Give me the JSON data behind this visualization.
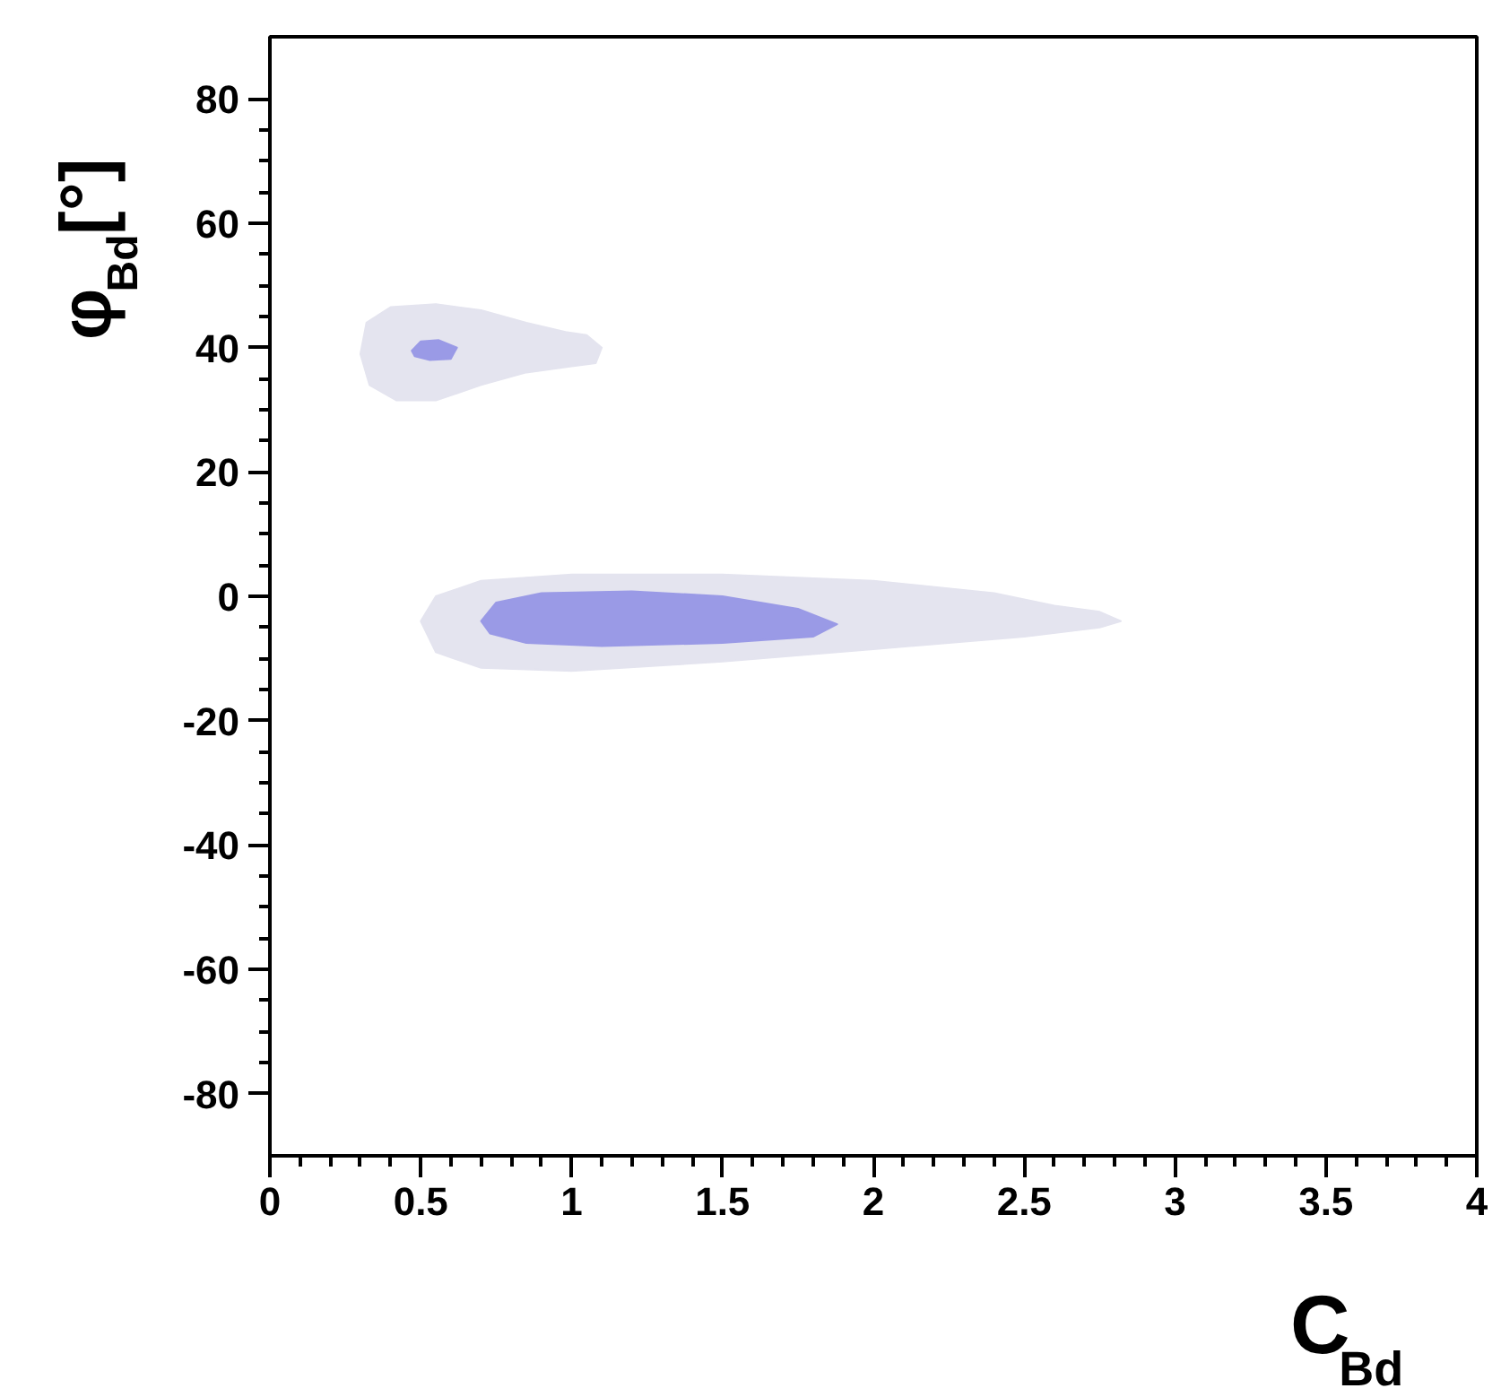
{
  "chart_data": {
    "type": "area",
    "xlabel": "C$_{Bd}$",
    "ylabel": "φ$_{Bd}$[°]",
    "xlim": [
      0,
      4
    ],
    "ylim": [
      -90,
      90
    ],
    "xticks": [
      0,
      0.5,
      1,
      1.5,
      2,
      2.5,
      3,
      3.5,
      4
    ],
    "yticks": [
      -80,
      -60,
      -40,
      -20,
      0,
      20,
      40,
      60,
      80
    ],
    "grid": false,
    "series": [
      {
        "color": "#e4e4ef",
        "x": [
          0.3,
          0.32,
          0.4,
          0.55,
          0.7,
          0.85,
          0.98,
          1.05,
          1.1,
          1.08,
          1.0,
          0.85,
          0.7,
          0.55,
          0.42,
          0.33
        ],
        "values": [
          39,
          44,
          46.5,
          47,
          46,
          44,
          42.5,
          42,
          40,
          37.5,
          37,
          36,
          34,
          31.5,
          31.5,
          34
        ]
      },
      {
        "color": "#e4e4ef",
        "x": [
          0.5,
          0.55,
          0.7,
          1.0,
          1.5,
          2.0,
          2.4,
          2.6,
          2.75,
          2.82,
          2.75,
          2.5,
          2.0,
          1.5,
          1.0,
          0.7,
          0.55
        ],
        "values": [
          -4,
          0,
          2.5,
          3.5,
          3.5,
          2.5,
          0.5,
          -1.5,
          -2.5,
          -4,
          -5,
          -6.5,
          -8.5,
          -10.5,
          -12,
          -11.5,
          -9
        ]
      },
      {
        "color": "#9a9ae6",
        "x": [
          0.47,
          0.5,
          0.56,
          0.62,
          0.6,
          0.53,
          0.48
        ],
        "values": [
          39.5,
          41,
          41.2,
          40,
          38.2,
          38,
          38.6
        ]
      },
      {
        "color": "#9a9ae6",
        "x": [
          0.7,
          0.75,
          0.9,
          1.2,
          1.5,
          1.75,
          1.88,
          1.8,
          1.5,
          1.1,
          0.85,
          0.73
        ],
        "values": [
          -4,
          -1,
          0.5,
          0.8,
          0,
          -2,
          -4.5,
          -6.5,
          -7.5,
          -8,
          -7.5,
          -6
        ]
      }
    ]
  }
}
